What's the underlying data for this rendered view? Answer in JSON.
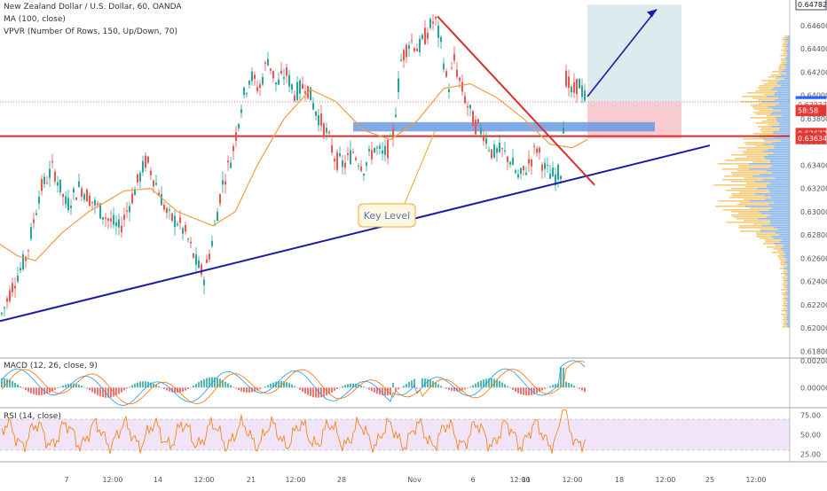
{
  "header": {
    "symbol_line": "New Zealand Dollar / U.S. Dollar, 60, OANDA",
    "ma_line": "MA (100, close)",
    "vpvr_line": "VPVR (Number Of Rows, 150, Up/Down, 70)"
  },
  "macd_panel": {
    "label": "MACD (12, 26, close, 9)",
    "ticks": [
      "0.00200",
      "0.00000"
    ]
  },
  "rsi_panel": {
    "label": "RSI (14, close)",
    "ticks": [
      "75.00",
      "50.00",
      "25.00"
    ]
  },
  "annotation": {
    "key_level": "Key Level"
  },
  "x_axis": {
    "ticks": [
      "7",
      "12:00",
      "14",
      "12:00",
      "21",
      "12:00",
      "28",
      "Nov",
      "6",
      "12:00",
      "11",
      "12:00",
      "18",
      "12:00",
      "25",
      "12:00"
    ]
  },
  "price_axis": {
    "ticks": [
      "0.64600",
      "0.64400",
      "0.64200",
      "0.64000",
      "0.63800",
      "0.63600",
      "0.63400",
      "0.63200",
      "0.63000",
      "0.62800",
      "0.62600",
      "0.62400",
      "0.62200",
      "0.62000",
      "0.61800"
    ],
    "badges": [
      {
        "text": "0.64782",
        "bg": "#ffffff",
        "fg": "#131722",
        "border": "#131722"
      },
      {
        "text": "0.63945",
        "bg": "#2962ff",
        "fg": "#ffffff",
        "border": "#2962ff"
      },
      {
        "text": "0.63937",
        "bg": "#ffffff",
        "fg": "#e53935",
        "border": "#ffffff"
      },
      {
        "text": "58:58",
        "bg": "#e53935",
        "fg": "#ffffff",
        "border": "#e53935"
      },
      {
        "text": "0.63672",
        "bg": "#e53935",
        "fg": "#ffffff",
        "border": "#e53935"
      },
      {
        "text": "0.63634",
        "bg": "#e53935",
        "fg": "#ffffff",
        "border": "#e53935"
      }
    ]
  },
  "colors": {
    "up": "#26a69a",
    "down": "#ef5350",
    "ma": "#f39c3f",
    "trend": "#1a1aa8",
    "resistance": "#d32f2f",
    "key_zone": "#6a9ae0",
    "vpvr_up": "#76a9ea",
    "vpvr_down": "#f5c463",
    "macd": "#2196f3",
    "signal": "#ff6d00",
    "rsi": "#f57c00",
    "rsi_band": "#f1e1f7"
  },
  "chart_data": {
    "type": "candlestick",
    "ylim": [
      0.6175,
      0.6482
    ],
    "support_level": 0.6365,
    "key_zone": [
      0.6369,
      0.6377
    ],
    "ticks_price": [
      0.646,
      0.644,
      0.642,
      0.64,
      0.638,
      0.636,
      0.634,
      0.632,
      0.63,
      0.628,
      0.626,
      0.624,
      0.622,
      0.62,
      0.618
    ],
    "trendline_rising": [
      [
        0,
        0.6206
      ],
      [
        800,
        0.6357
      ]
    ],
    "trendline_falling": [
      [
        493,
        0.6468
      ],
      [
        670,
        0.6323
      ]
    ],
    "target_arrow": [
      [
        662,
        0.6399
      ],
      [
        740,
        0.6474
      ]
    ],
    "long_position": {
      "x0": 662,
      "x1": 768,
      "entry": 0.6394,
      "target": 0.6478,
      "stop": 0.6363
    },
    "tick_positions": [
      75,
      127,
      178,
      230,
      283,
      333,
      385,
      467,
      533,
      586,
      593,
      645,
      698,
      750,
      800,
      852
    ],
    "price_path": [
      [
        0,
        0.6208
      ],
      [
        15,
        0.6238
      ],
      [
        30,
        0.6262
      ],
      [
        45,
        0.6318
      ],
      [
        60,
        0.6338
      ],
      [
        75,
        0.6305
      ],
      [
        90,
        0.6322
      ],
      [
        105,
        0.6308
      ],
      [
        120,
        0.6295
      ],
      [
        135,
        0.6285
      ],
      [
        150,
        0.6315
      ],
      [
        165,
        0.6345
      ],
      [
        178,
        0.632
      ],
      [
        190,
        0.6295
      ],
      [
        200,
        0.6292
      ],
      [
        210,
        0.628
      ],
      [
        220,
        0.6258
      ],
      [
        230,
        0.6244
      ],
      [
        240,
        0.6278
      ],
      [
        250,
        0.6322
      ],
      [
        262,
        0.635
      ],
      [
        272,
        0.6392
      ],
      [
        282,
        0.6418
      ],
      [
        292,
        0.6405
      ],
      [
        302,
        0.6432
      ],
      [
        312,
        0.6408
      ],
      [
        322,
        0.642
      ],
      [
        332,
        0.6402
      ],
      [
        345,
        0.641
      ],
      [
        355,
        0.6388
      ],
      [
        368,
        0.6368
      ],
      [
        378,
        0.6345
      ],
      [
        388,
        0.634
      ],
      [
        398,
        0.6352
      ],
      [
        410,
        0.6338
      ],
      [
        422,
        0.6355
      ],
      [
        432,
        0.6348
      ],
      [
        442,
        0.636
      ],
      [
        452,
        0.643
      ],
      [
        462,
        0.6448
      ],
      [
        472,
        0.644
      ],
      [
        482,
        0.6455
      ],
      [
        490,
        0.6466
      ],
      [
        498,
        0.644
      ],
      [
        505,
        0.6405
      ],
      [
        512,
        0.643
      ],
      [
        518,
        0.6412
      ],
      [
        525,
        0.6395
      ],
      [
        535,
        0.6375
      ],
      [
        545,
        0.6368
      ],
      [
        555,
        0.635
      ],
      [
        565,
        0.6352
      ],
      [
        575,
        0.6345
      ],
      [
        585,
        0.6328
      ],
      [
        595,
        0.634
      ],
      [
        605,
        0.6355
      ],
      [
        615,
        0.6335
      ],
      [
        625,
        0.633
      ],
      [
        632,
        0.6335
      ],
      [
        638,
        0.6415
      ],
      [
        645,
        0.64
      ],
      [
        652,
        0.6412
      ],
      [
        660,
        0.6396
      ]
    ],
    "ma_path": [
      [
        0,
        0.6272
      ],
      [
        20,
        0.6262
      ],
      [
        40,
        0.6258
      ],
      [
        70,
        0.6282
      ],
      [
        100,
        0.63
      ],
      [
        140,
        0.6318
      ],
      [
        170,
        0.632
      ],
      [
        200,
        0.63
      ],
      [
        240,
        0.6288
      ],
      [
        265,
        0.63
      ],
      [
        290,
        0.634
      ],
      [
        320,
        0.638
      ],
      [
        350,
        0.6405
      ],
      [
        378,
        0.6395
      ],
      [
        410,
        0.637
      ],
      [
        440,
        0.6362
      ],
      [
        470,
        0.6378
      ],
      [
        500,
        0.6406
      ],
      [
        530,
        0.641
      ],
      [
        560,
        0.6398
      ],
      [
        590,
        0.638
      ],
      [
        620,
        0.6358
      ],
      [
        645,
        0.6355
      ],
      [
        662,
        0.6362
      ]
    ],
    "macd_ylim": [
      -0.0015,
      0.0022
    ],
    "rsi_ylim": [
      15,
      85
    ],
    "rsi_levels": [
      70,
      30
    ]
  }
}
